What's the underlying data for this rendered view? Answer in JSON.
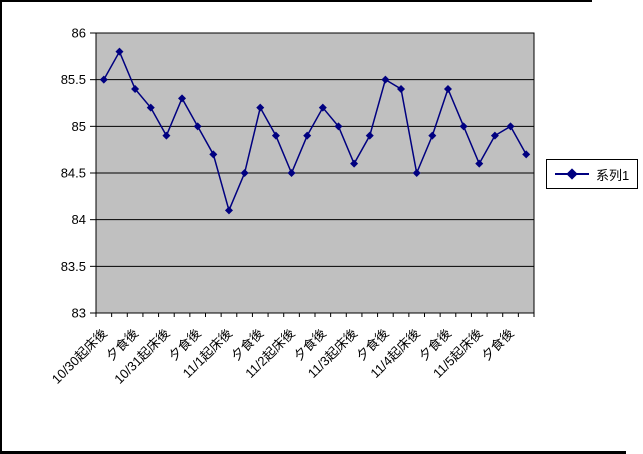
{
  "window": {
    "background": "#ffffff",
    "border_color": "#000000"
  },
  "chart_data": {
    "type": "line",
    "title": "",
    "xlabel": "",
    "ylabel": "",
    "n_points": 28,
    "series": [
      {
        "name": "系列1",
        "color": "#000080",
        "values": [
          85.5,
          85.8,
          85.4,
          85.2,
          84.9,
          85.3,
          85.0,
          84.7,
          84.1,
          84.5,
          85.2,
          84.9,
          84.5,
          84.9,
          85.2,
          85.0,
          84.6,
          84.9,
          85.5,
          85.4,
          84.5,
          84.9,
          85.4,
          85.0,
          84.6,
          84.9,
          85.0,
          84.7
        ]
      }
    ],
    "x_tick_labels": [
      "10/30起床後",
      "夕食後",
      "10/31起床後",
      "夕食後",
      "11/1起床後",
      "夕食後",
      "11/2起床後",
      "夕食後",
      "11/3起床後",
      "夕食後",
      "11/4起床後",
      "夕食後",
      "11/5起床後",
      "夕食後"
    ],
    "x_label_interval": 2,
    "ylim": [
      83,
      86
    ],
    "y_tick_step": 0.5,
    "y_tick_labels": [
      "86",
      "85.5",
      "85",
      "84.5",
      "84",
      "83.5",
      "83"
    ],
    "grid": "horizontal-on",
    "plot_bg": "#c0c0c0",
    "grid_color": "#000000",
    "legend": {
      "label": "系列1",
      "position": "right"
    }
  }
}
